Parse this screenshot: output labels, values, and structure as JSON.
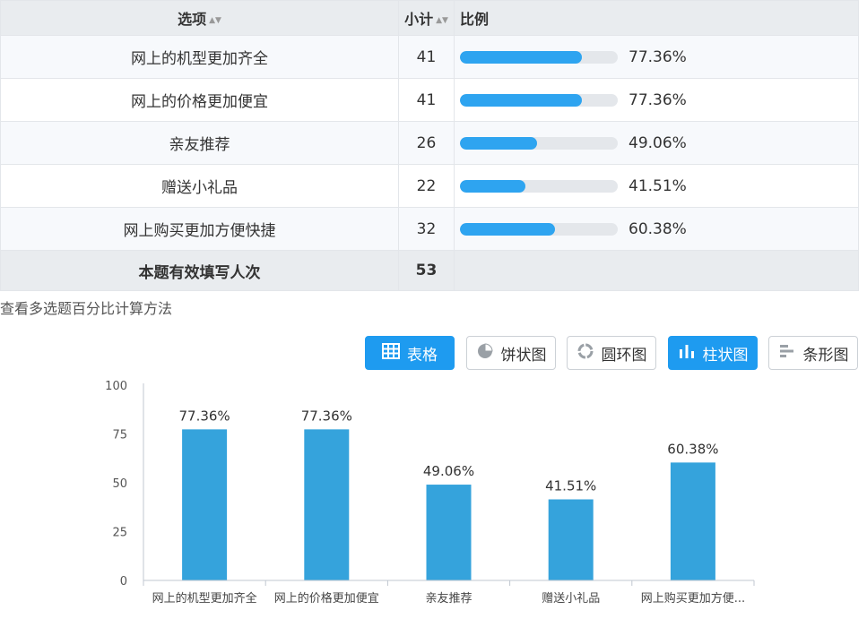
{
  "table": {
    "headers": {
      "option": "选项",
      "count": "小计",
      "percent": "比例"
    },
    "rows": [
      {
        "option": "网上的机型更加齐全",
        "count": "41",
        "percent": "77.36%",
        "fraction": 0.7736
      },
      {
        "option": "网上的价格更加便宜",
        "count": "41",
        "percent": "77.36%",
        "fraction": 0.7736
      },
      {
        "option": "亲友推荐",
        "count": "26",
        "percent": "49.06%",
        "fraction": 0.4906
      },
      {
        "option": "赠送小礼品",
        "count": "22",
        "percent": "41.51%",
        "fraction": 0.4151
      },
      {
        "option": "网上购买更加方便快捷",
        "count": "32",
        "percent": "60.38%",
        "fraction": 0.6038
      }
    ],
    "total": {
      "label": "本题有效填写人次",
      "count": "53"
    }
  },
  "link_text": "查看多选题百分比计算方法",
  "buttons": [
    {
      "label": "表格",
      "icon": "table-icon",
      "active": true
    },
    {
      "label": "饼状图",
      "icon": "pie-chart-icon",
      "active": false
    },
    {
      "label": "圆环图",
      "icon": "donut-chart-icon",
      "active": false
    },
    {
      "label": "柱状图",
      "icon": "bar-chart-icon",
      "active": true
    },
    {
      "label": "条形图",
      "icon": "horizontal-bar-chart-icon",
      "active": false
    }
  ],
  "colors": {
    "accent": "#1e9bf0",
    "bar": "#35a3dc",
    "track": "#e4e7eb"
  },
  "chart_data": {
    "type": "bar",
    "categories": [
      "网上的机型更加齐全",
      "网上的价格更加便宜",
      "亲友推荐",
      "赠送小礼品",
      "网上购买更加方便..."
    ],
    "values": [
      77.36,
      77.36,
      49.06,
      41.51,
      60.38
    ],
    "data_labels": [
      "77.36%",
      "77.36%",
      "49.06%",
      "41.51%",
      "60.38%"
    ],
    "yticks": [
      0,
      25,
      50,
      75,
      100
    ],
    "ylim": [
      0,
      100
    ],
    "grid": false,
    "legend": "none"
  }
}
